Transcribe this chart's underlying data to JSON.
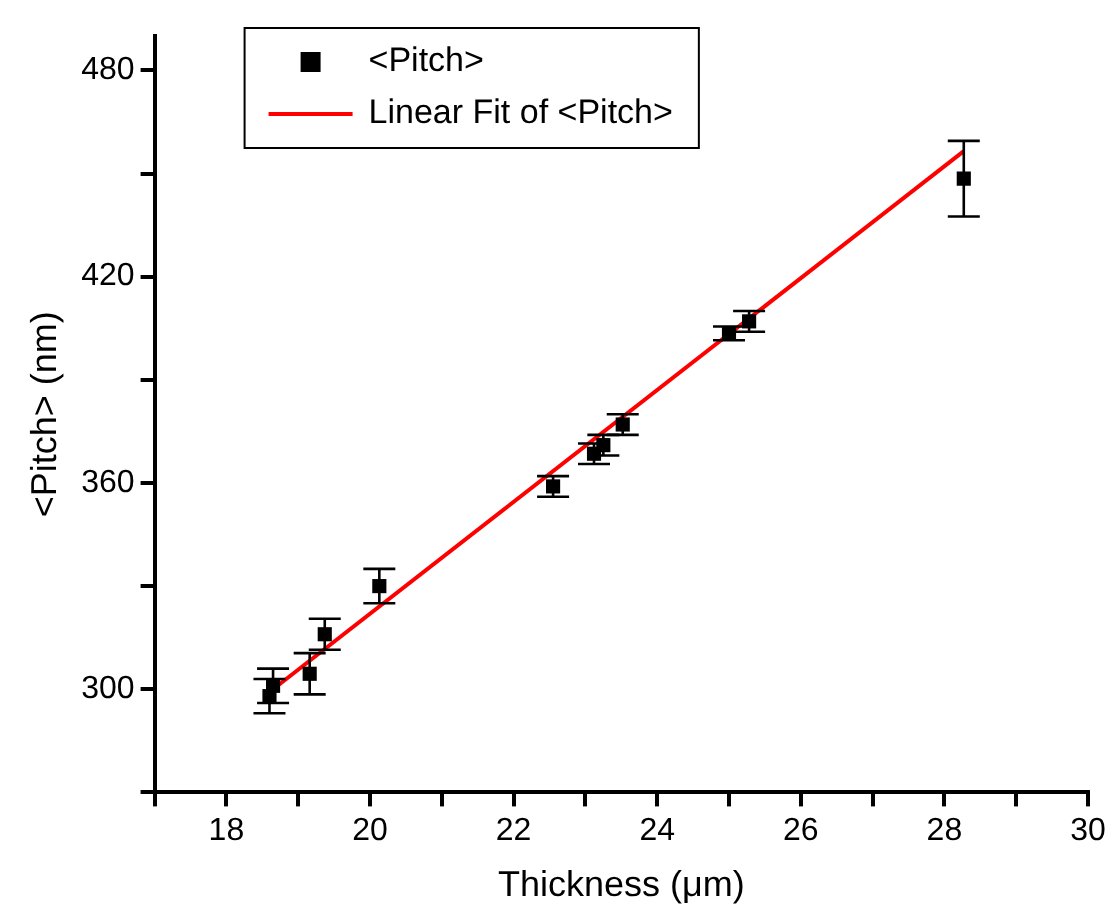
{
  "chart_data": {
    "type": "scatter",
    "xlabel": "Thickness (μm)",
    "ylabel": "<Pitch> (nm)",
    "xlim": [
      17,
      30
    ],
    "ylim": [
      270,
      490
    ],
    "xticks": [
      {
        "value": 17,
        "label": null
      },
      18,
      {
        "value": 19,
        "label": null
      },
      20,
      {
        "value": 21,
        "label": null
      },
      22,
      {
        "value": 23,
        "label": null
      },
      24,
      {
        "value": 25,
        "label": null
      },
      26,
      {
        "value": 27,
        "label": null
      },
      28,
      {
        "value": 29,
        "label": null
      },
      30
    ],
    "yticks": [
      {
        "value": 270,
        "label": null
      },
      300,
      {
        "value": 330,
        "label": null
      },
      360,
      {
        "value": 390,
        "label": null
      },
      420,
      {
        "value": 450,
        "label": null
      },
      480
    ],
    "grid": false,
    "legend": "top left",
    "marker": "square",
    "series": [
      {
        "name": "<Pitch>",
        "color": "#000000",
        "x": [
          18.6,
          18.65,
          19.16,
          19.37,
          20.13,
          22.55,
          23.12,
          23.25,
          23.52,
          25.0,
          25.28,
          28.27
        ],
        "values": [
          298,
          301,
          304.5,
          316,
          330,
          359,
          368.5,
          371,
          377,
          403.5,
          407,
          448.5
        ],
        "errors": [
          5,
          5,
          6,
          4.5,
          5,
          3,
          3,
          3,
          3,
          2,
          3,
          11
        ]
      },
      {
        "name": "Linear Fit of <Pitch>",
        "type": "line",
        "color": "#ff0000",
        "x": [
          18.65,
          28.27
        ],
        "values": [
          300,
          456.5
        ],
        "line_style": "solid",
        "marker": "none"
      }
    ]
  }
}
